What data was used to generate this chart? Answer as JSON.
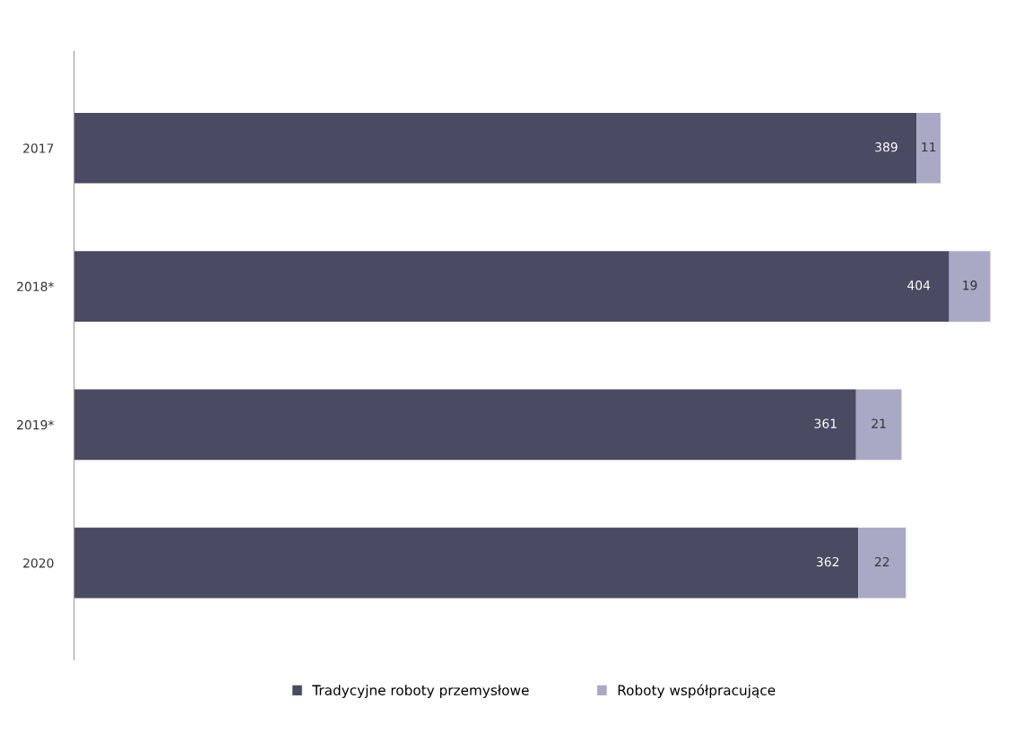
{
  "chart_data": {
    "type": "bar",
    "orientation": "horizontal",
    "stacked": true,
    "categories": [
      "2017",
      "2018*",
      "2019*",
      "2020"
    ],
    "series": [
      {
        "name": "Tradycyjne roboty przemysłowe",
        "color": "#4a4a62",
        "values": [
          389,
          404,
          361,
          362
        ]
      },
      {
        "name": "Roboty współpracujące",
        "color": "#a9a9c6",
        "values": [
          11,
          19,
          21,
          22
        ]
      }
    ],
    "xlim": [
      0,
      425
    ],
    "tick_labels": "y",
    "data_labels": true,
    "legend": "bottom",
    "grid": false
  }
}
